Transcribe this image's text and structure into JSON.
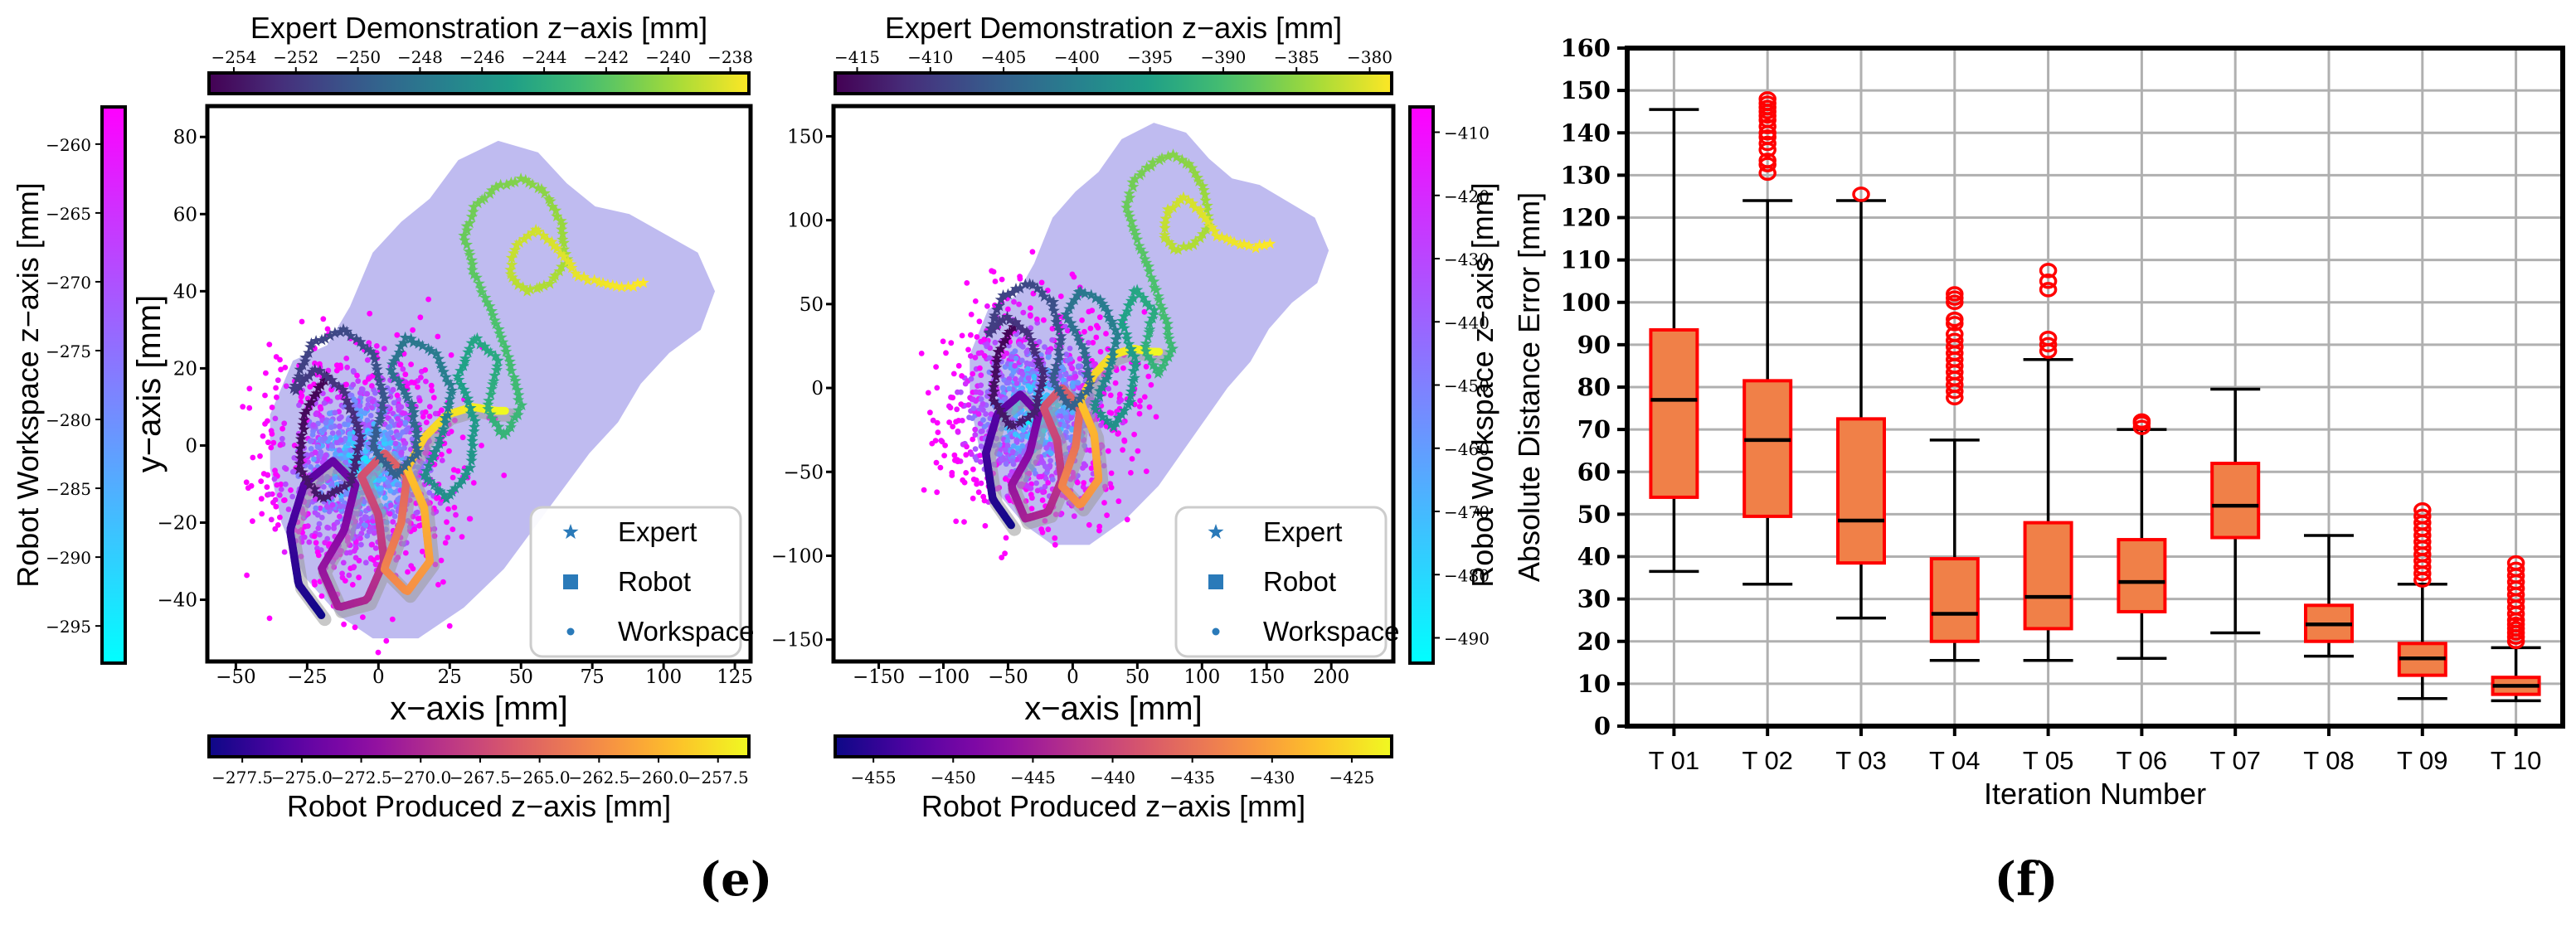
{
  "captions": {
    "left": "(e)",
    "right": "(f)"
  },
  "colormaps": {
    "viridis": [
      "#440154",
      "#46327e",
      "#365c8d",
      "#277f8e",
      "#1fa187",
      "#4ac16d",
      "#a0da39",
      "#fde725"
    ],
    "plasma": [
      "#0d0887",
      "#5302a3",
      "#8b0aa5",
      "#b83289",
      "#db5c68",
      "#f48849",
      "#febd2a",
      "#f0f921"
    ],
    "cool": [
      "#00ffff",
      "#ff00ff"
    ]
  },
  "style": {
    "spine_color": "#000000",
    "grid_color": "#b0b0b0",
    "workspace_region_color": "#b8b4ee",
    "robot_shadow_color": "#9a9a9a",
    "legend_marker_color": "#2a7ab9",
    "legend_border_color": "#cccccc",
    "box_fill": "#f08048",
    "box_edge": "#ff0000",
    "median_color": "#000000",
    "whisker_color": "#000000",
    "outlier_color": "#ff0000"
  },
  "chart_data": [
    {
      "id": "left_scatter",
      "type": "scatter",
      "xlabel": "x-axis [mm]",
      "ylabel": "y-axis [mm]",
      "xlim": [
        -60,
        130.5
      ],
      "ylim": [
        -56,
        88
      ],
      "xticks": [
        -50,
        -25,
        0,
        25,
        50,
        75,
        100,
        125
      ],
      "yticks": [
        80,
        60,
        40,
        20,
        0,
        -20,
        -40
      ],
      "grid": false,
      "legend": {
        "position": "lower right",
        "entries": [
          {
            "marker": "star",
            "label": "Expert"
          },
          {
            "marker": "square",
            "label": "Robot"
          },
          {
            "marker": "dot",
            "label": "Workspace"
          }
        ]
      },
      "colorbars": {
        "top": {
          "label": "Expert Demonstration z-axis [mm]",
          "cmap": "viridis",
          "decimals": 0,
          "ticks": [
            -254,
            -252,
            -250,
            -248,
            -246,
            -244,
            -242,
            -240,
            -238
          ],
          "range": [
            -254.8,
            -237.4
          ]
        },
        "left": {
          "label": "Robot Workspace z-axis [mm]",
          "cmap": "cool",
          "decimals": 0,
          "ticks": [
            -260,
            -265,
            -270,
            -275,
            -280,
            -285,
            -290,
            -295
          ],
          "range": [
            -257.3,
            -297.7
          ]
        },
        "bottom": {
          "label": "Robot Produced z-axis [mm]",
          "cmap": "plasma",
          "decimals": 1,
          "ticks": [
            -277.5,
            -275.0,
            -272.5,
            -270.0,
            -267.5,
            -265.0,
            -262.5,
            -260.0,
            -257.5
          ],
          "range": [
            -278.9,
            -256.2
          ]
        }
      },
      "workspace_region": [
        [
          -38,
          8
        ],
        [
          -30,
          22
        ],
        [
          -18,
          26
        ],
        [
          -10,
          36
        ],
        [
          -2,
          50
        ],
        [
          8,
          58
        ],
        [
          18,
          64
        ],
        [
          28,
          74
        ],
        [
          42,
          79
        ],
        [
          56,
          76
        ],
        [
          66,
          68
        ],
        [
          76,
          62
        ],
        [
          88,
          60
        ],
        [
          100,
          55
        ],
        [
          112,
          50
        ],
        [
          118,
          40
        ],
        [
          113,
          30
        ],
        [
          102,
          24
        ],
        [
          92,
          16
        ],
        [
          84,
          6
        ],
        [
          74,
          -2
        ],
        [
          64,
          -12
        ],
        [
          54,
          -22
        ],
        [
          44,
          -32
        ],
        [
          30,
          -42
        ],
        [
          14,
          -50
        ],
        [
          -2,
          -50
        ],
        [
          -14,
          -44
        ],
        [
          -26,
          -34
        ],
        [
          -34,
          -20
        ],
        [
          -38,
          -6
        ]
      ],
      "expert_path": [
        [
          -18,
          18
        ],
        [
          -26,
          8
        ],
        [
          -28,
          -6
        ],
        [
          -20,
          -14
        ],
        [
          -10,
          -10
        ],
        [
          -6,
          2
        ],
        [
          -12,
          14
        ],
        [
          -22,
          20
        ],
        [
          -30,
          14
        ],
        [
          -24,
          26
        ],
        [
          -12,
          30
        ],
        [
          -2,
          24
        ],
        [
          2,
          12
        ],
        [
          -2,
          0
        ],
        [
          6,
          -8
        ],
        [
          14,
          -2
        ],
        [
          12,
          10
        ],
        [
          4,
          20
        ],
        [
          10,
          28
        ],
        [
          20,
          24
        ],
        [
          26,
          14
        ],
        [
          22,
          2
        ],
        [
          16,
          -8
        ],
        [
          24,
          -14
        ],
        [
          32,
          -6
        ],
        [
          34,
          6
        ],
        [
          28,
          18
        ],
        [
          34,
          28
        ],
        [
          42,
          22
        ],
        [
          38,
          10
        ],
        [
          44,
          2
        ],
        [
          50,
          10
        ],
        [
          46,
          22
        ],
        [
          40,
          34
        ],
        [
          34,
          44
        ],
        [
          30,
          54
        ],
        [
          34,
          62
        ],
        [
          42,
          67
        ],
        [
          50,
          69
        ],
        [
          58,
          66
        ],
        [
          64,
          58
        ],
        [
          66,
          48
        ],
        [
          60,
          42
        ],
        [
          52,
          40
        ],
        [
          46,
          44
        ],
        [
          48,
          52
        ],
        [
          55,
          56
        ],
        [
          62,
          52
        ],
        [
          70,
          44
        ],
        [
          78,
          42
        ],
        [
          86,
          41
        ],
        [
          93,
          42
        ]
      ],
      "robot_path": [
        [
          -20,
          -44
        ],
        [
          -28,
          -36
        ],
        [
          -31,
          -22
        ],
        [
          -26,
          -10
        ],
        [
          -16,
          -4
        ],
        [
          -8,
          -10
        ],
        [
          -12,
          -22
        ],
        [
          -20,
          -32
        ],
        [
          -14,
          -42
        ],
        [
          -4,
          -40
        ],
        [
          2,
          -30
        ],
        [
          0,
          -18
        ],
        [
          -6,
          -8
        ],
        [
          2,
          -2
        ],
        [
          10,
          -8
        ],
        [
          8,
          -20
        ],
        [
          2,
          -32
        ],
        [
          10,
          -38
        ],
        [
          18,
          -30
        ],
        [
          16,
          -16
        ],
        [
          10,
          -6
        ],
        [
          16,
          2
        ],
        [
          24,
          8
        ],
        [
          33,
          10
        ],
        [
          41,
          9
        ],
        [
          45,
          9
        ]
      ],
      "path_transform": {
        "sx": 1,
        "tx": 0,
        "sy": 1,
        "ty": 0
      },
      "workspace_points": {
        "count": 1400,
        "seed": 11,
        "center": [
          -6,
          -5
        ],
        "sigma": [
          30,
          27
        ]
      }
    },
    {
      "id": "middle_scatter",
      "type": "scatter",
      "xlabel": "x-axis [mm]",
      "ylabel": "",
      "xlim": [
        -185,
        248
      ],
      "ylim": [
        -163,
        168
      ],
      "xticks": [
        -150,
        -100,
        -50,
        0,
        50,
        100,
        150,
        200
      ],
      "yticks": [
        150,
        100,
        50,
        0,
        -50,
        -100,
        -150
      ],
      "grid": false,
      "legend": {
        "position": "lower right",
        "entries": [
          {
            "marker": "star",
            "label": "Expert"
          },
          {
            "marker": "square",
            "label": "Robot"
          },
          {
            "marker": "dot",
            "label": "Workspace"
          }
        ]
      },
      "colorbars": {
        "top": {
          "label": "Expert Demonstration z-axis [mm]",
          "cmap": "viridis",
          "decimals": 0,
          "ticks": [
            -415,
            -410,
            -405,
            -400,
            -395,
            -390,
            -385,
            -380
          ],
          "range": [
            -416.5,
            -378.5
          ]
        },
        "right": {
          "label": "Robot Workspace z-axis [mm]",
          "cmap": "cool",
          "decimals": 0,
          "ticks": [
            -410,
            -420,
            -430,
            -440,
            -450,
            -460,
            -470,
            -480,
            -490
          ],
          "range": [
            -406,
            -494
          ]
        },
        "bottom": {
          "label": "Robot Produced z-axis [mm]",
          "cmap": "plasma",
          "decimals": 0,
          "ticks": [
            -455,
            -450,
            -445,
            -440,
            -435,
            -430,
            -425
          ],
          "range": [
            -457.4,
            -422.5
          ]
        }
      },
      "workspace_region": [
        [
          -38,
          8
        ],
        [
          -30,
          22
        ],
        [
          -18,
          26
        ],
        [
          -10,
          36
        ],
        [
          -2,
          50
        ],
        [
          8,
          58
        ],
        [
          18,
          64
        ],
        [
          28,
          74
        ],
        [
          42,
          79
        ],
        [
          56,
          76
        ],
        [
          66,
          68
        ],
        [
          76,
          62
        ],
        [
          88,
          60
        ],
        [
          100,
          55
        ],
        [
          112,
          50
        ],
        [
          118,
          40
        ],
        [
          113,
          30
        ],
        [
          102,
          24
        ],
        [
          92,
          16
        ],
        [
          84,
          6
        ],
        [
          74,
          -2
        ],
        [
          64,
          -12
        ],
        [
          54,
          -22
        ],
        [
          44,
          -32
        ],
        [
          30,
          -42
        ],
        [
          14,
          -50
        ],
        [
          -2,
          -50
        ],
        [
          -14,
          -44
        ],
        [
          -26,
          -34
        ],
        [
          -34,
          -20
        ],
        [
          -38,
          -6
        ]
      ],
      "expert_path": [
        [
          -18,
          18
        ],
        [
          -26,
          8
        ],
        [
          -28,
          -6
        ],
        [
          -20,
          -14
        ],
        [
          -10,
          -10
        ],
        [
          -6,
          2
        ],
        [
          -12,
          14
        ],
        [
          -22,
          20
        ],
        [
          -30,
          14
        ],
        [
          -24,
          26
        ],
        [
          -12,
          30
        ],
        [
          -2,
          24
        ],
        [
          2,
          12
        ],
        [
          -2,
          0
        ],
        [
          6,
          -8
        ],
        [
          14,
          -2
        ],
        [
          12,
          10
        ],
        [
          4,
          20
        ],
        [
          10,
          28
        ],
        [
          20,
          24
        ],
        [
          26,
          14
        ],
        [
          22,
          2
        ],
        [
          16,
          -8
        ],
        [
          24,
          -14
        ],
        [
          32,
          -6
        ],
        [
          34,
          6
        ],
        [
          28,
          18
        ],
        [
          34,
          28
        ],
        [
          42,
          22
        ],
        [
          38,
          10
        ],
        [
          44,
          2
        ],
        [
          50,
          10
        ],
        [
          46,
          22
        ],
        [
          40,
          34
        ],
        [
          34,
          44
        ],
        [
          30,
          54
        ],
        [
          34,
          62
        ],
        [
          42,
          67
        ],
        [
          50,
          69
        ],
        [
          58,
          66
        ],
        [
          64,
          58
        ],
        [
          66,
          48
        ],
        [
          60,
          42
        ],
        [
          52,
          40
        ],
        [
          46,
          44
        ],
        [
          48,
          52
        ],
        [
          55,
          56
        ],
        [
          62,
          52
        ],
        [
          70,
          44
        ],
        [
          78,
          42
        ],
        [
          86,
          41
        ],
        [
          93,
          42
        ]
      ],
      "robot_path": [
        [
          -20,
          -44
        ],
        [
          -28,
          -36
        ],
        [
          -31,
          -22
        ],
        [
          -26,
          -10
        ],
        [
          -16,
          -4
        ],
        [
          -8,
          -10
        ],
        [
          -12,
          -22
        ],
        [
          -20,
          -32
        ],
        [
          -14,
          -42
        ],
        [
          -4,
          -40
        ],
        [
          2,
          -30
        ],
        [
          0,
          -18
        ],
        [
          -6,
          -8
        ],
        [
          2,
          -2
        ],
        [
          10,
          -8
        ],
        [
          8,
          -20
        ],
        [
          2,
          -32
        ],
        [
          10,
          -38
        ],
        [
          18,
          -30
        ],
        [
          16,
          -16
        ],
        [
          10,
          -6
        ],
        [
          16,
          2
        ],
        [
          24,
          8
        ],
        [
          33,
          10
        ],
        [
          41,
          9
        ],
        [
          45,
          9
        ]
      ],
      "path_transform": {
        "sx": 1.78,
        "tx": -12,
        "sy": 1.95,
        "ty": 4
      },
      "workspace_points": {
        "count": 1250,
        "seed": 23,
        "center": [
          -28,
          -14
        ],
        "sigma": [
          62,
          57
        ]
      }
    },
    {
      "id": "error_boxplot",
      "type": "boxplot",
      "xlabel": "Iteration Number",
      "ylabel": "Absolute Distance Error [mm]",
      "ylim": [
        0,
        160
      ],
      "ytick_step": 10,
      "grid": true,
      "categories": [
        "T 01",
        "T 02",
        "T 03",
        "T 04",
        "T 05",
        "T 06",
        "T 07",
        "T 08",
        "T 09",
        "T 10"
      ],
      "boxes": [
        {
          "whislo": 36.5,
          "q1": 54,
          "med": 77,
          "q3": 93.5,
          "whishi": 145.5,
          "fliers": []
        },
        {
          "whislo": 33.5,
          "q1": 49.5,
          "med": 67.5,
          "q3": 81.5,
          "whishi": 124,
          "fliers": [
            130.5,
            132.5,
            133.5,
            136,
            137.5,
            139,
            140,
            141.5,
            143,
            144,
            145,
            146,
            147,
            148
          ]
        },
        {
          "whislo": 25.5,
          "q1": 38.5,
          "med": 48.5,
          "q3": 72.5,
          "whishi": 124,
          "fliers": [
            125.5
          ]
        },
        {
          "whislo": 15.5,
          "q1": 20,
          "med": 26.5,
          "q3": 39.5,
          "whishi": 67.5,
          "fliers": [
            77.5,
            79,
            80.5,
            82,
            83.5,
            85,
            86.5,
            88,
            89.5,
            91,
            92.5,
            95,
            96,
            100,
            101,
            102
          ]
        },
        {
          "whislo": 15.5,
          "q1": 23,
          "med": 30.5,
          "q3": 48,
          "whishi": 86.5,
          "fliers": [
            88.5,
            90,
            91.5,
            103,
            105,
            107.5
          ]
        },
        {
          "whislo": 16,
          "q1": 27,
          "med": 34,
          "q3": 44,
          "whishi": 70,
          "fliers": [
            70.5,
            71.5,
            72
          ]
        },
        {
          "whislo": 22,
          "q1": 44.5,
          "med": 52,
          "q3": 62,
          "whishi": 79.5,
          "fliers": []
        },
        {
          "whislo": 16.5,
          "q1": 20,
          "med": 24,
          "q3": 28.5,
          "whishi": 45,
          "fliers": []
        },
        {
          "whislo": 6.5,
          "q1": 12,
          "med": 16,
          "q3": 19.5,
          "whishi": 33.5,
          "fliers": [
            34.5,
            36,
            37.5,
            39,
            40.5,
            42,
            43.5,
            45,
            46.5,
            48,
            49.5,
            51
          ]
        },
        {
          "whislo": 6,
          "q1": 7.5,
          "med": 9.5,
          "q3": 11.5,
          "whishi": 18.5,
          "fliers": [
            20,
            21,
            22,
            23,
            24,
            25,
            26.5,
            28,
            29.5,
            31,
            32.5,
            34,
            35.5,
            37,
            38.5
          ]
        }
      ]
    }
  ]
}
